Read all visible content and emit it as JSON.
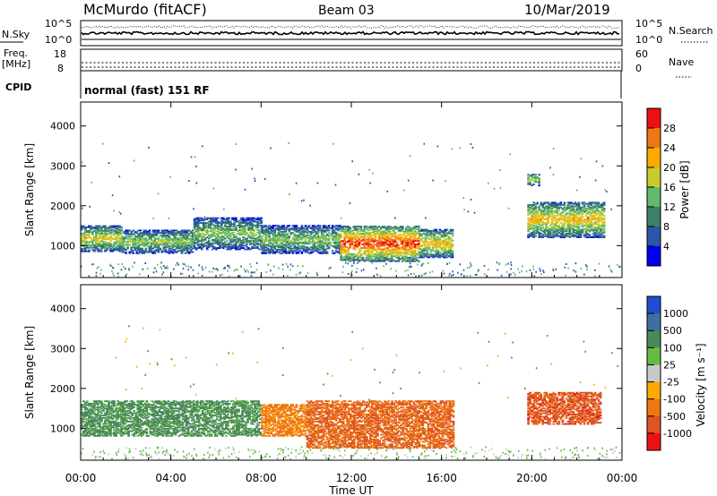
{
  "header": {
    "station": "McMurdo (fitACF)",
    "beam": "Beam 03",
    "date": "10/Mar/2019"
  },
  "aux_panels": {
    "nsky_label": "N.Sky",
    "nsky_ticks": [
      "10^5",
      "10^0"
    ],
    "nsearch_label": "N.Search",
    "nsearch_ticks": [
      "10^5",
      "10^0"
    ],
    "freq_label": "Freq.",
    "freq_unit": "[MHz]",
    "freq_ticks": [
      "18",
      "8"
    ],
    "nave_label": "Nave",
    "nave_ticks": [
      "60",
      "0"
    ],
    "cpid_label": "CPID",
    "cpid_text": "normal (fast) 151 RF"
  },
  "chart_data": [
    {
      "type": "heatmap",
      "name": "power",
      "ylabel": "Slant Range [km]",
      "ylim": [
        200,
        4600
      ],
      "yticks": [
        "4000",
        "3000",
        "2000",
        "1000"
      ],
      "colorbar": {
        "label": "Power [dB]",
        "ticks": [
          "28",
          "24",
          "20",
          "16",
          "12",
          "8",
          "4"
        ],
        "colors": [
          "#ee1111",
          "#ee7711",
          "#ffaa00",
          "#c8cc2b",
          "#62b86b",
          "#3d8066",
          "#2a57a8",
          "#0000ee"
        ]
      },
      "features": [
        {
          "t0": 0.0,
          "t1": 1.8,
          "r0": 850,
          "r1": 1500,
          "peak_db": 20
        },
        {
          "t0": 1.8,
          "t1": 5.0,
          "r0": 800,
          "r1": 1400,
          "peak_db": 16
        },
        {
          "t0": 5.0,
          "t1": 8.0,
          "r0": 900,
          "r1": 1700,
          "peak_db": 16
        },
        {
          "t0": 8.0,
          "t1": 11.5,
          "r0": 800,
          "r1": 1500,
          "peak_db": 16
        },
        {
          "t0": 11.5,
          "t1": 15.0,
          "r0": 600,
          "r1": 1500,
          "peak_db": 30
        },
        {
          "t0": 15.0,
          "t1": 16.5,
          "r0": 700,
          "r1": 1400,
          "peak_db": 22
        },
        {
          "t0": 19.8,
          "t1": 23.2,
          "r0": 1200,
          "r1": 2100,
          "peak_db": 22
        },
        {
          "t0": 19.8,
          "t1": 20.3,
          "r0": 2500,
          "r1": 2800,
          "peak_db": 18
        }
      ]
    },
    {
      "type": "heatmap",
      "name": "velocity",
      "xlabel": "Time UT",
      "ylabel": "Slant Range [km]",
      "xticks": [
        "00:00",
        "04:00",
        "08:00",
        "12:00",
        "16:00",
        "20:00",
        "00:00"
      ],
      "xlim_hours": [
        0,
        24
      ],
      "ylim": [
        200,
        4600
      ],
      "yticks": [
        "4000",
        "3000",
        "2000",
        "1000"
      ],
      "colorbar": {
        "label": "Velocity [m s⁻¹]",
        "ticks": [
          "1000",
          "500",
          "100",
          "25",
          "-25",
          "-100",
          "-500",
          "-1000"
        ],
        "colors": [
          "#1f4fd0",
          "#3f6ea0",
          "#4a8a5a",
          "#66bb44",
          "#c8c8c8",
          "#ffaa00",
          "#ee7711",
          "#dd5522",
          "#ee1111"
        ]
      },
      "features": [
        {
          "t0": 0.0,
          "t1": 8.0,
          "r0": 800,
          "r1": 1700,
          "velocity": 100
        },
        {
          "t0": 8.0,
          "t1": 10.0,
          "r0": 800,
          "r1": 1600,
          "velocity": -100
        },
        {
          "t0": 10.0,
          "t1": 16.5,
          "r0": 500,
          "r1": 1700,
          "velocity": -300
        },
        {
          "t0": 19.8,
          "t1": 23.0,
          "r0": 1100,
          "r1": 1900,
          "velocity": -500
        }
      ]
    }
  ]
}
